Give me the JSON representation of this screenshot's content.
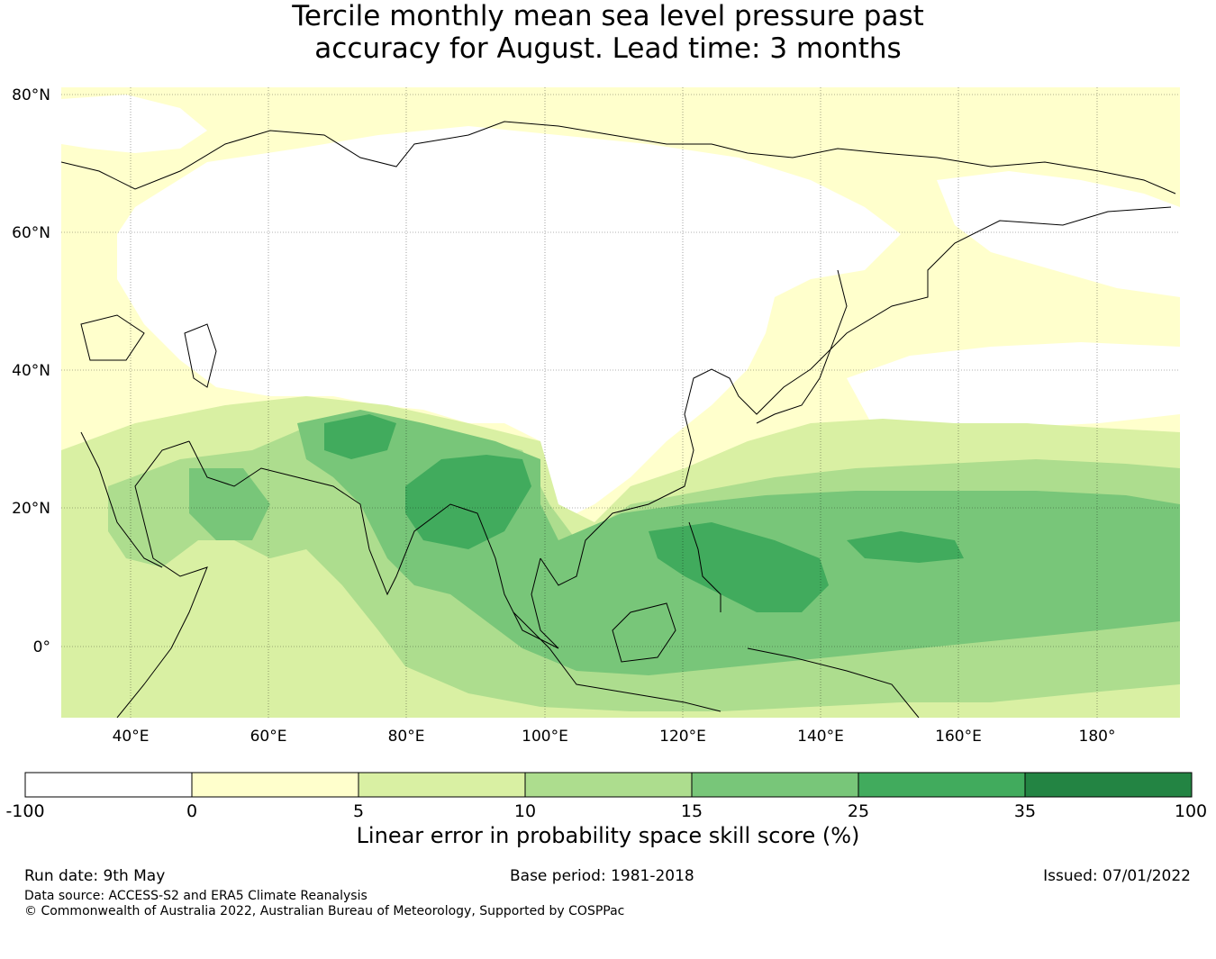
{
  "title": {
    "line1": "Tercile monthly mean sea level pressure past",
    "line2": "accuracy for August. Lead time: 3 months"
  },
  "map": {
    "lat_ticks": [
      "80°N",
      "60°N",
      "40°N",
      "20°N",
      "0°"
    ],
    "lon_ticks": [
      "40°E",
      "60°E",
      "80°E",
      "100°E",
      "120°E",
      "140°E",
      "160°E",
      "180°"
    ],
    "grid": true
  },
  "colorbar": {
    "boundaries": [
      "-100",
      "0",
      "5",
      "10",
      "15",
      "25",
      "35",
      "100"
    ],
    "colors": [
      "#ffffff",
      "#ffffcc",
      "#d9f0a3",
      "#addd8e",
      "#78c679",
      "#41ab5d",
      "#238443"
    ],
    "label": "Linear error in probability space skill score (%)"
  },
  "footer": {
    "run_date": "Run date: 9th May",
    "base_period": "Base period: 1981-2018",
    "issued": "Issued: 07/01/2022",
    "data_source": "Data source: ACCESS-S2 and ERA5 Climate Reanalysis",
    "copyright": "© Commonwealth of Australia 2022, Australian Bureau of Meteorology, Supported by COSPPac"
  }
}
